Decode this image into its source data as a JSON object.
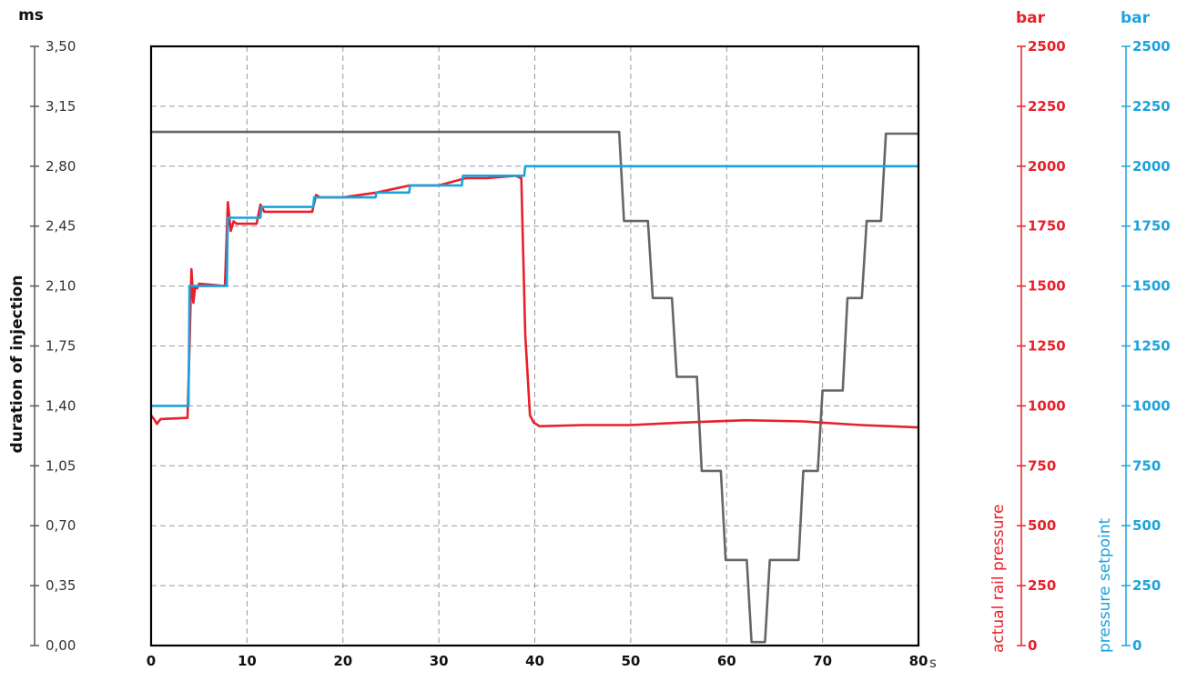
{
  "chart_data": {
    "type": "line",
    "axes": {
      "x": {
        "unit": "s",
        "min": 0,
        "max": 80,
        "ticks": [
          "0",
          "10",
          "20",
          "30",
          "40",
          "50",
          "60",
          "70",
          "80"
        ]
      },
      "y_left": {
        "unit": "ms",
        "label": "duration of injection",
        "min": 0,
        "max": 3.5,
        "ticks": [
          "0,00",
          "0,35",
          "0,70",
          "1,05",
          "1,40",
          "1,75",
          "2,10",
          "2,45",
          "2,80",
          "3,15",
          "3,50"
        ],
        "color": "#555555"
      },
      "y_right_1": {
        "unit": "bar",
        "label": "actual rail pressure",
        "min": 0,
        "max": 2500,
        "ticks": [
          "0",
          "250",
          "500",
          "750",
          "1000",
          "1250",
          "1500",
          "1750",
          "2000",
          "2250",
          "2500"
        ],
        "color": "#e8202a"
      },
      "y_right_2": {
        "unit": "bar",
        "label": "pressure setpoint",
        "min": 0,
        "max": 2500,
        "ticks": [
          "0",
          "250",
          "500",
          "750",
          "1000",
          "1250",
          "1500",
          "1750",
          "2000",
          "2250",
          "2500"
        ],
        "color": "#1aa3dd"
      }
    },
    "grid": true,
    "series": [
      {
        "name": "duration of injection",
        "axis": "y_left",
        "color": "#666666",
        "x": [
          0,
          48.8,
          49.3,
          51.8,
          52.3,
          54.3,
          54.8,
          56.9,
          57.4,
          59.4,
          59.9,
          62.1,
          62.6,
          64.0,
          64.5,
          67.5,
          68.0,
          69.5,
          70.0,
          72.1,
          72.6,
          74.1,
          74.6,
          76.1,
          76.6,
          80
        ],
        "y": [
          3.0,
          3.0,
          2.48,
          2.48,
          2.03,
          2.03,
          1.57,
          1.57,
          1.02,
          1.02,
          0.5,
          0.5,
          0.02,
          0.02,
          0.5,
          0.5,
          1.02,
          1.02,
          1.49,
          1.49,
          2.03,
          2.03,
          2.48,
          2.48,
          2.99,
          2.99
        ]
      },
      {
        "name": "actual rail pressure",
        "axis": "y_right_1",
        "color": "#e8202a",
        "x": [
          0,
          0.3,
          0.6,
          1.0,
          3.8,
          4.0,
          4.2,
          4.4,
          4.6,
          4.8,
          5.0,
          7.7,
          8.0,
          8.3,
          8.6,
          8.9,
          9.3,
          11.0,
          11.4,
          11.8,
          16.8,
          17.2,
          17.6,
          20,
          23.5,
          27,
          30,
          32.8,
          35,
          38,
          38.6,
          39.0,
          39.5,
          39.9,
          40.5,
          45,
          50,
          55,
          62,
          68,
          74,
          80
        ],
        "y": [
          960,
          945,
          925,
          945,
          950,
          1250,
          1570,
          1430,
          1500,
          1490,
          1510,
          1500,
          1850,
          1730,
          1770,
          1760,
          1760,
          1760,
          1840,
          1810,
          1810,
          1880,
          1870,
          1870,
          1890,
          1920,
          1920,
          1950,
          1950,
          1960,
          1950,
          1300,
          960,
          930,
          915,
          920,
          920,
          930,
          940,
          935,
          920,
          910
        ]
      },
      {
        "name": "pressure setpoint",
        "axis": "y_right_2",
        "color": "#1aa3dd",
        "x": [
          0,
          3.9,
          4.0,
          7.9,
          8.0,
          11.4,
          11.5,
          16.9,
          17.0,
          23.4,
          23.5,
          26.9,
          27.0,
          32.4,
          32.5,
          38.9,
          39.0,
          80
        ],
        "y": [
          1000,
          1000,
          1500,
          1500,
          1785,
          1785,
          1830,
          1830,
          1870,
          1870,
          1890,
          1890,
          1920,
          1920,
          1960,
          1960,
          2000,
          2000
        ]
      }
    ]
  }
}
